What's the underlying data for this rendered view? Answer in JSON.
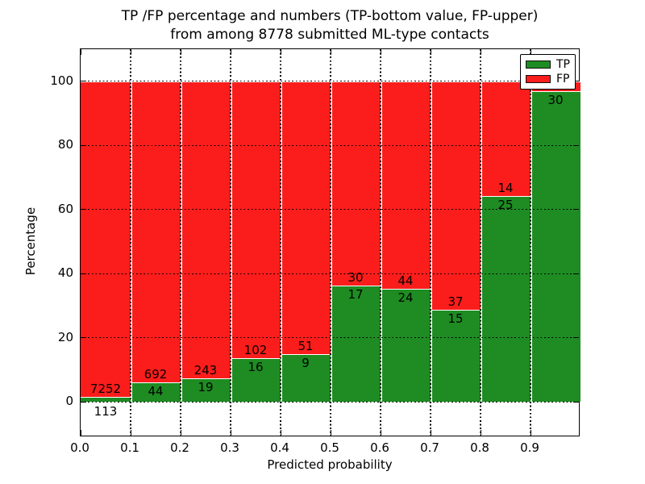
{
  "figure": {
    "title_line1": "TP /FP percentage and numbers (TP-bottom value, FP-upper)",
    "title_line2": "from among 8778 submitted ML-type contacts"
  },
  "chart_data": {
    "type": "bar",
    "subtype": "stacked-percentage-histogram",
    "title": "TP /FP percentage and numbers (TP-bottom value, FP-upper)\nfrom among 8778 submitted ML-type contacts",
    "xlabel": "Predicted probability",
    "ylabel": "Percentage",
    "xlim": [
      0.0,
      1.0
    ],
    "ylim": [
      -11,
      110
    ],
    "bin_width": 0.1,
    "x_tick_labels": [
      "0.0",
      "0.1",
      "0.2",
      "0.3",
      "0.4",
      "0.5",
      "0.6",
      "0.7",
      "0.8",
      "0.9"
    ],
    "y_tick_values": [
      0,
      20,
      40,
      60,
      80,
      100
    ],
    "y_tick_labels": [
      "0",
      "20",
      "40",
      "60",
      "80",
      "100"
    ],
    "grid": {
      "visible": true,
      "style": "dotted",
      "color": "#000000"
    },
    "colors": {
      "tp": "#1e8c22",
      "fp": "#fb1d1b",
      "bar_edge": "#ffffff"
    },
    "legend": {
      "position": "upper-right",
      "entries": [
        {
          "label": "TP",
          "color": "#1e8c22"
        },
        {
          "label": "FP",
          "color": "#fb1d1b"
        }
      ]
    },
    "categories": [
      "0.0-0.1",
      "0.1-0.2",
      "0.2-0.3",
      "0.3-0.4",
      "0.4-0.5",
      "0.5-0.6",
      "0.6-0.7",
      "0.7-0.8",
      "0.8-0.9",
      "0.9-1.0"
    ],
    "series": [
      {
        "name": "TP",
        "counts": [
          113,
          44,
          19,
          16,
          9,
          17,
          24,
          15,
          25,
          30
        ],
        "values_pct": [
          1.5,
          6.0,
          7.3,
          13.6,
          15.0,
          36.2,
          35.3,
          28.8,
          64.1,
          96.8
        ]
      },
      {
        "name": "FP",
        "counts": [
          7252,
          692,
          243,
          102,
          51,
          30,
          44,
          37,
          14,
          1
        ],
        "values_pct": [
          98.5,
          94.0,
          92.7,
          86.4,
          85.0,
          63.8,
          64.7,
          71.2,
          35.9,
          3.2
        ]
      }
    ],
    "bar_labels": [
      {
        "tp": "113",
        "fp": "7252",
        "tp_below_axis": true
      },
      {
        "tp": "44",
        "fp": "692"
      },
      {
        "tp": "19",
        "fp": "243"
      },
      {
        "tp": "16",
        "fp": "102"
      },
      {
        "tp": "9",
        "fp": "51"
      },
      {
        "tp": "17",
        "fp": "30"
      },
      {
        "tp": "24",
        "fp": "44"
      },
      {
        "tp": "15",
        "fp": "37"
      },
      {
        "tp": "25",
        "fp": "14"
      },
      {
        "tp": "30",
        "fp": ""
      }
    ]
  }
}
